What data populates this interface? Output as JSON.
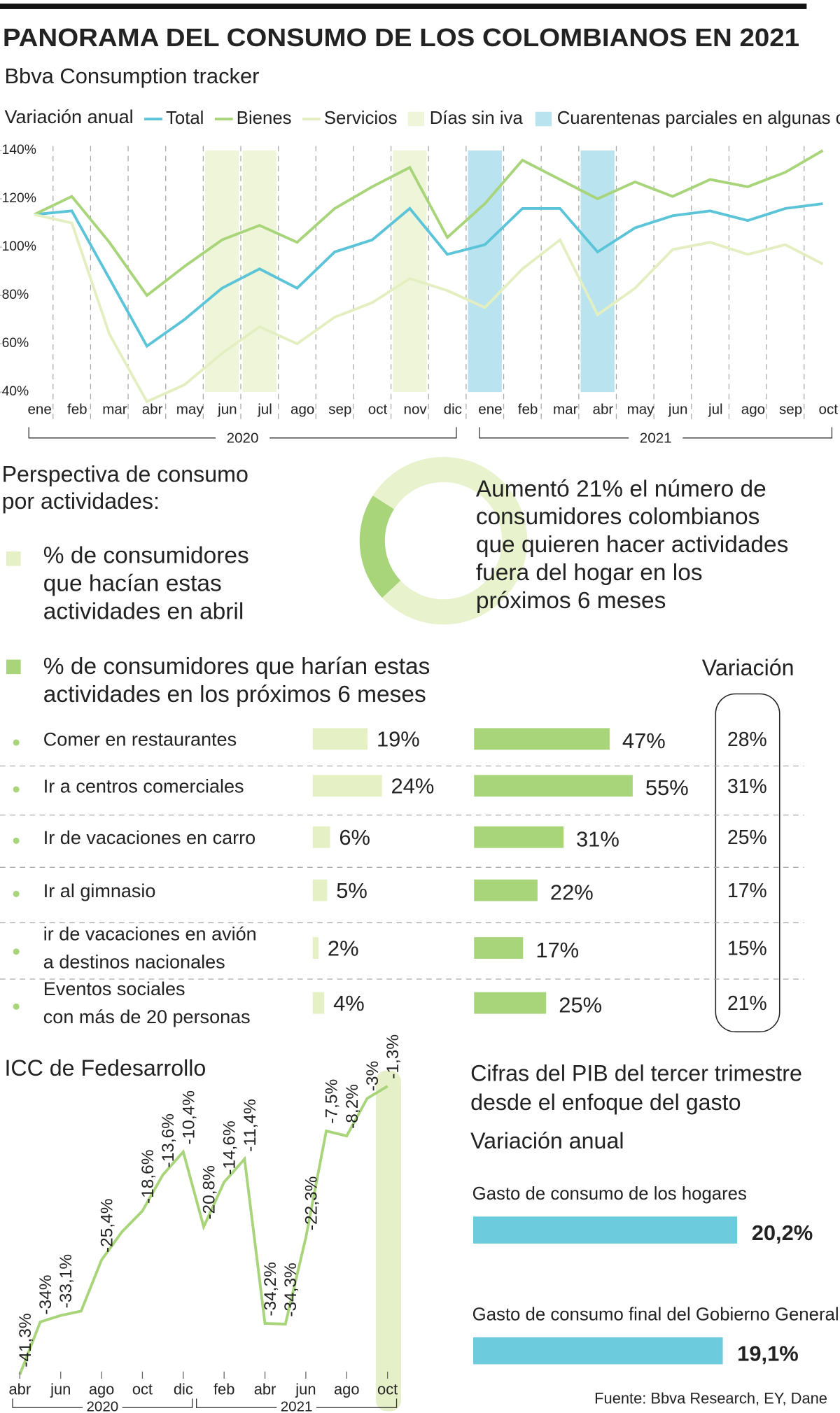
{
  "header": {
    "title": "PANORAMA DEL CONSUMO DE LOS COLOMBIANOS EN 2021",
    "subtitle": "Bbva Consumption tracker"
  },
  "chart_data": [
    {
      "type": "line",
      "y_label": "Variación anual",
      "categories": [
        "ene",
        "feb",
        "mar",
        "abr",
        "may",
        "jun",
        "jul",
        "ago",
        "sep",
        "oct",
        "nov",
        "dic",
        "ene",
        "feb",
        "mar",
        "abr",
        "may",
        "jun",
        "jul",
        "ago",
        "sep",
        "oct"
      ],
      "year_groups": [
        {
          "label": "2020",
          "start": 0,
          "end": 11
        },
        {
          "label": "2021",
          "start": 12,
          "end": 21
        }
      ],
      "series": [
        {
          "name": "Total",
          "color": "#5bc4d9",
          "values": [
            113.5,
            115,
            87,
            59,
            70,
            83,
            91,
            83,
            98,
            103,
            116,
            97,
            101,
            116,
            116,
            98,
            108,
            113,
            115,
            111,
            116,
            118
          ]
        },
        {
          "name": "Bienes",
          "color": "#a8d47a",
          "values": [
            113.5,
            121,
            102,
            80,
            92,
            103,
            109,
            102,
            116,
            125,
            133,
            104,
            118,
            136,
            128,
            120,
            127,
            121,
            128,
            125,
            131,
            140
          ]
        },
        {
          "name": "Servicios",
          "color": "#e3efc0",
          "values": [
            113.5,
            110,
            64,
            36,
            43,
            56,
            67,
            60,
            71,
            77,
            87,
            82,
            75,
            91,
            103,
            72,
            83,
            99,
            102,
            97,
            101,
            93
          ]
        }
      ],
      "bands": [
        {
          "name": "Días sin iva",
          "color": "#eef5d9",
          "positions": [
            5,
            6,
            10
          ]
        },
        {
          "name": "Cuarentenas parciales en algunas ciudades",
          "color": "#b9e3ef",
          "positions": [
            12,
            15
          ]
        }
      ],
      "ylim": [
        40,
        140
      ],
      "yticks": [
        {
          "value": 40,
          "label": "40%"
        },
        {
          "value": 60,
          "label": "60%"
        },
        {
          "value": 80,
          "label": "80%"
        },
        {
          "value": 100,
          "label": "100%"
        },
        {
          "value": 120,
          "label": "120%"
        },
        {
          "value": 140,
          "label": "140%"
        }
      ]
    },
    {
      "type": "paired_bar",
      "title": [
        "Perspectiva de consumo",
        "por actividades:"
      ],
      "categories": [
        [
          "Comer en restaurantes"
        ],
        [
          "Ir a centros comerciales"
        ],
        [
          "Ir de vacaciones en carro"
        ],
        [
          "Ir al gimnasio"
        ],
        [
          "ir de vacaciones en avión",
          "a destinos nacionales"
        ],
        [
          "Eventos sociales",
          "con más de 20 personas"
        ]
      ],
      "series": [
        {
          "name": [
            "% de consumidores",
            "que hacían estas",
            "actividades en abril"
          ],
          "color": "#e5f0c4",
          "values": [
            19,
            24,
            6,
            5,
            2,
            4
          ],
          "value_labels": [
            "19%",
            "24%",
            "6%",
            "5%",
            "2%",
            "4%"
          ]
        },
        {
          "name": [
            "% de consumidores que harían estas",
            "actividades en los próximos 6 meses"
          ],
          "color": "#a8d47a",
          "values": [
            47,
            55,
            31,
            22,
            17,
            25
          ],
          "value_labels": [
            "47%",
            "55%",
            "31%",
            "22%",
            "17%",
            "25%"
          ]
        },
        {
          "name": "Variación",
          "values": [
            28,
            31,
            25,
            17,
            15,
            21
          ],
          "value_labels": [
            "28%",
            "31%",
            "25%",
            "17%",
            "15%",
            "21%"
          ]
        }
      ],
      "donut": {
        "values": [
          21,
          79
        ],
        "colors": [
          "#a8d47a",
          "#e8f2cc"
        ]
      },
      "annotation": [
        "Aumentó 21% el número de",
        "consumidores colombianos",
        "que quieren hacer actividades",
        "fuera del hogar en los",
        "próximos 6 meses"
      ]
    },
    {
      "type": "line",
      "title": "ICC de Fedesarrollo",
      "color": "#a8d47a",
      "highlight_color": "#e6f0c8",
      "highlight": 18,
      "categories": [
        "abr",
        null,
        "jun",
        null,
        "ago",
        null,
        "oct",
        null,
        "dic",
        null,
        "feb",
        null,
        "abr",
        null,
        "jun",
        null,
        "ago",
        null,
        "oct"
      ],
      "year_groups": [
        {
          "label": "2020",
          "start": 0,
          "end": 8
        },
        {
          "label": "2021",
          "start": 9,
          "end": 18
        }
      ],
      "values": [
        -41.3,
        -34,
        -33.1,
        -32.5,
        -25.4,
        -21.5,
        -18.6,
        -13.6,
        -10.4,
        -20.8,
        -14.6,
        -11.4,
        -34.2,
        -34.3,
        -22.3,
        -7.5,
        -8.2,
        -3,
        -1.3
      ],
      "value_labels": [
        "-41,3%",
        "-34%",
        "-33,1%",
        null,
        "-25,4%",
        null,
        "-18,6%",
        "-13,6%",
        "-10,4%",
        "-20,8%",
        "-14,6%",
        "-11,4%",
        "-34,2%",
        "-34,3%",
        "-22,3%",
        "-7,5%",
        "-8,2%",
        "-3%",
        "-1,3%"
      ],
      "ylim": [
        -45,
        0
      ]
    },
    {
      "type": "hbar",
      "title": [
        "Cifras del PIB del tercer trimestre",
        "desde el enfoque del gasto"
      ],
      "subtitle": "Variación anual",
      "color": "#6ccbdc",
      "categories": [
        "Gasto de consumo de los hogares",
        "Gasto de consumo final del Gobierno General"
      ],
      "values": [
        20.2,
        19.1
      ],
      "value_labels": [
        "20,2%",
        "19,1%"
      ]
    }
  ],
  "source": "Fuente: Bbva Research, EY, Dane"
}
